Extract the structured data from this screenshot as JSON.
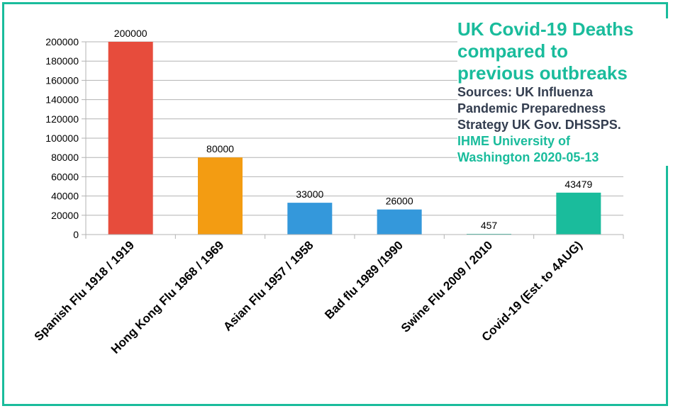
{
  "chart_data": {
    "type": "bar",
    "title_lines": [
      "UK Covid-19 Deaths",
      "compared to",
      "previous outbreaks"
    ],
    "sources_lines": [
      "Sources: UK Influenza",
      "Pandemic Preparedness",
      "Strategy UK Gov. DHSSPS."
    ],
    "sources2_lines": [
      "IHME University of",
      "Washington 2020-05-13"
    ],
    "categories": [
      "Spanish Flu 1918 / 1919",
      "Hong Kong Flu 1968 / 1969",
      "Asian Flu 1957 / 1958",
      "Bad flu 1989 /1990",
      "Swine Flu 2009 / 2010",
      "Covid-19 (Est. to 4AUG)"
    ],
    "values": [
      200000,
      80000,
      33000,
      26000,
      457,
      43479
    ],
    "data_labels": [
      "200000",
      "80000",
      "33000",
      "26000",
      "457",
      "43479"
    ],
    "colors": [
      "#e74c3c",
      "#f39c12",
      "#3498db",
      "#3498db",
      "#1abc9c",
      "#1abc9c"
    ],
    "y_ticks": [
      0,
      20000,
      40000,
      60000,
      80000,
      100000,
      120000,
      140000,
      160000,
      180000,
      200000
    ],
    "ylim": [
      0,
      200000
    ],
    "grid": true,
    "legend": false
  }
}
